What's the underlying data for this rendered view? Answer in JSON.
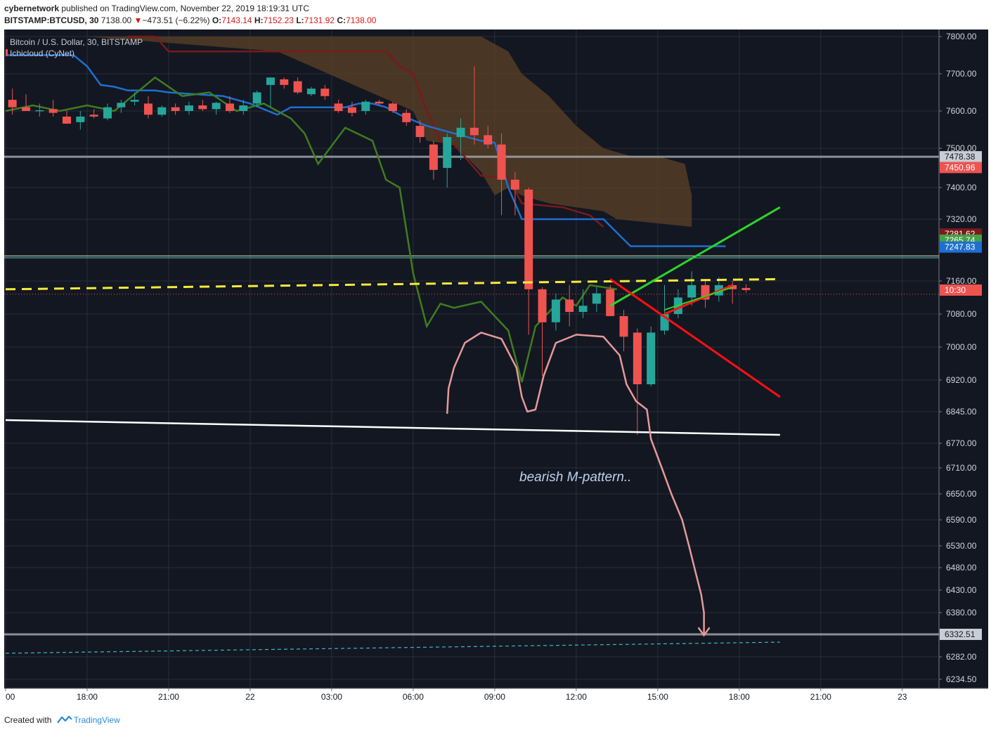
{
  "header": {
    "author": "cybernetwork",
    "published_text": "published on TradingView.com, November 22, 2019 18:19:31 UTC",
    "symbol": "BITSTAMP:BTCUSD, 30",
    "last_price": "7138.00",
    "change_arrow": "▼",
    "change": "−473.51 (−6.22%)",
    "o_label": "O:",
    "o_value": "7143.14",
    "h_label": "H:",
    "h_value": "7152.23",
    "l_label": "L:",
    "l_value": "7131.92",
    "c_label": "C:",
    "c_value": "7138.00"
  },
  "legend": {
    "title": "Bitcoin / U.S. Dollar, 30, BITSTAMP",
    "indicator": "Ichicloud (CyNet)"
  },
  "annotation": "bearish M-pattern..",
  "footer": {
    "created_with": "Created with",
    "brand": "TradingView"
  },
  "colors": {
    "background": "#131722",
    "grid": "#2a2e39",
    "up_candle": "#26a69a",
    "down_candle": "#ef5350",
    "kijun": "#1e6fd0",
    "tenkan": "#3e7d1f",
    "senkou_b": "#7a1a1a",
    "cloud": "#5e4325",
    "yellow_line": "#f5eb3a",
    "support_line": "#ffffff",
    "green_line": "#2bd52b",
    "red_line": "#ff1010",
    "path_line": "#e59a9a",
    "target_line": "#3ab8c8"
  },
  "chart_data": {
    "type": "candlestick",
    "interval_minutes": 30,
    "y_ticks": [
      7800,
      7700,
      7600,
      7500,
      7400,
      7320,
      7160,
      7080,
      7000,
      6920,
      6845,
      6770,
      6710,
      6650,
      6590,
      6530,
      6480,
      6430,
      6380,
      6282,
      6234.5
    ],
    "y_tick_labels": [
      "7800.00",
      "7700.00",
      "7600.00",
      "7500.00",
      "7400.00",
      "7320.00",
      "7160.00",
      "7080.00",
      "7000.00",
      "6920.00",
      "6845.00",
      "6770.00",
      "6710.00",
      "6650.00",
      "6590.00",
      "6530.00",
      "6480.00",
      "6430.00",
      "6380.00",
      "6282.00",
      "6234.50"
    ],
    "x_ticks": [
      {
        "label": "00",
        "index": 0
      },
      {
        "label": "18:00",
        "index": 6
      },
      {
        "label": "21:00",
        "index": 12
      },
      {
        "label": "22",
        "index": 18
      },
      {
        "label": "03:00",
        "index": 24
      },
      {
        "label": "06:00",
        "index": 30
      },
      {
        "label": "09:00",
        "index": 36
      },
      {
        "label": "12:00",
        "index": 42
      },
      {
        "label": "15:00",
        "index": 48
      },
      {
        "label": "18:00",
        "index": 54
      },
      {
        "label": "21:00",
        "index": 60
      },
      {
        "label": "23",
        "index": 66
      }
    ],
    "candles": [
      {
        "i": 0.5,
        "o": 7630,
        "h": 7660,
        "l": 7590,
        "c": 7610
      },
      {
        "i": 1.5,
        "o": 7610,
        "h": 7645,
        "l": 7600,
        "c": 7600
      },
      {
        "i": 2.5,
        "o": 7600,
        "h": 7620,
        "l": 7585,
        "c": 7602
      },
      {
        "i": 3.5,
        "o": 7605,
        "h": 7630,
        "l": 7585,
        "c": 7595
      },
      {
        "i": 4.5,
        "o": 7585,
        "h": 7600,
        "l": 7565,
        "c": 7566
      },
      {
        "i": 5.5,
        "o": 7570,
        "h": 7600,
        "l": 7550,
        "c": 7585
      },
      {
        "i": 6.5,
        "o": 7590,
        "h": 7605,
        "l": 7580,
        "c": 7585
      },
      {
        "i": 7.5,
        "o": 7580,
        "h": 7620,
        "l": 7575,
        "c": 7610
      },
      {
        "i": 8.5,
        "o": 7610,
        "h": 7630,
        "l": 7595,
        "c": 7622
      },
      {
        "i": 9.5,
        "o": 7625,
        "h": 7650,
        "l": 7615,
        "c": 7630
      },
      {
        "i": 10.5,
        "o": 7620,
        "h": 7640,
        "l": 7580,
        "c": 7590
      },
      {
        "i": 11.5,
        "o": 7590,
        "h": 7615,
        "l": 7585,
        "c": 7610
      },
      {
        "i": 12.5,
        "o": 7610,
        "h": 7620,
        "l": 7590,
        "c": 7600
      },
      {
        "i": 13.5,
        "o": 7600,
        "h": 7625,
        "l": 7590,
        "c": 7615
      },
      {
        "i": 14.5,
        "o": 7615,
        "h": 7630,
        "l": 7600,
        "c": 7605
      },
      {
        "i": 15.5,
        "o": 7605,
        "h": 7625,
        "l": 7590,
        "c": 7622
      },
      {
        "i": 16.5,
        "o": 7620,
        "h": 7640,
        "l": 7595,
        "c": 7600
      },
      {
        "i": 17.5,
        "o": 7600,
        "h": 7630,
        "l": 7590,
        "c": 7615
      },
      {
        "i": 18.5,
        "o": 7620,
        "h": 7655,
        "l": 7610,
        "c": 7650
      },
      {
        "i": 19.5,
        "o": 7670,
        "h": 7690,
        "l": 7610,
        "c": 7690
      },
      {
        "i": 20.5,
        "o": 7685,
        "h": 7690,
        "l": 7660,
        "c": 7670
      },
      {
        "i": 21.5,
        "o": 7680,
        "h": 7690,
        "l": 7645,
        "c": 7650
      },
      {
        "i": 22.5,
        "o": 7645,
        "h": 7665,
        "l": 7640,
        "c": 7660
      },
      {
        "i": 23.5,
        "o": 7660,
        "h": 7670,
        "l": 7630,
        "c": 7640
      },
      {
        "i": 24.5,
        "o": 7620,
        "h": 7630,
        "l": 7595,
        "c": 7600
      },
      {
        "i": 25.5,
        "o": 7610,
        "h": 7625,
        "l": 7585,
        "c": 7595
      },
      {
        "i": 26.5,
        "o": 7600,
        "h": 7630,
        "l": 7590,
        "c": 7625
      },
      {
        "i": 27.5,
        "o": 7625,
        "h": 7630,
        "l": 7615,
        "c": 7620
      },
      {
        "i": 28.5,
        "o": 7620,
        "h": 7625,
        "l": 7595,
        "c": 7600
      },
      {
        "i": 29.5,
        "o": 7595,
        "h": 7605,
        "l": 7560,
        "c": 7570
      },
      {
        "i": 30.5,
        "o": 7560,
        "h": 7575,
        "l": 7515,
        "c": 7530
      },
      {
        "i": 31.5,
        "o": 7510,
        "h": 7520,
        "l": 7420,
        "c": 7445
      },
      {
        "i": 32.5,
        "o": 7450,
        "h": 7540,
        "l": 7400,
        "c": 7530
      },
      {
        "i": 33.5,
        "o": 7530,
        "h": 7580,
        "l": 7470,
        "c": 7555
      },
      {
        "i": 34.5,
        "o": 7555,
        "h": 7720,
        "l": 7510,
        "c": 7535
      },
      {
        "i": 35.5,
        "o": 7535,
        "h": 7560,
        "l": 7500,
        "c": 7510
      },
      {
        "i": 36.5,
        "o": 7510,
        "h": 7540,
        "l": 7330,
        "c": 7420
      },
      {
        "i": 37.5,
        "o": 7420,
        "h": 7440,
        "l": 7330,
        "c": 7395
      },
      {
        "i": 38.5,
        "o": 7395,
        "h": 7400,
        "l": 7030,
        "c": 7140
      },
      {
        "i": 39.5,
        "o": 7140,
        "h": 7145,
        "l": 6930,
        "c": 7060
      },
      {
        "i": 40.5,
        "o": 7060,
        "h": 7130,
        "l": 7040,
        "c": 7115
      },
      {
        "i": 41.5,
        "o": 7115,
        "h": 7150,
        "l": 7050,
        "c": 7085
      },
      {
        "i": 42.5,
        "o": 7085,
        "h": 7140,
        "l": 7070,
        "c": 7100
      },
      {
        "i": 43.5,
        "o": 7105,
        "h": 7145,
        "l": 7085,
        "c": 7130
      },
      {
        "i": 44.5,
        "o": 7140,
        "h": 7150,
        "l": 7075,
        "c": 7075
      },
      {
        "i": 45.5,
        "o": 7075,
        "h": 7090,
        "l": 6990,
        "c": 7025
      },
      {
        "i": 46.5,
        "o": 7035,
        "h": 7045,
        "l": 6790,
        "c": 6910
      },
      {
        "i": 47.5,
        "o": 6910,
        "h": 7050,
        "l": 6905,
        "c": 7035
      },
      {
        "i": 48.5,
        "o": 7040,
        "h": 7150,
        "l": 7030,
        "c": 7080
      },
      {
        "i": 49.5,
        "o": 7080,
        "h": 7140,
        "l": 7070,
        "c": 7120
      },
      {
        "i": 50.5,
        "o": 7120,
        "h": 7185,
        "l": 7100,
        "c": 7150
      },
      {
        "i": 51.5,
        "o": 7150,
        "h": 7165,
        "l": 7095,
        "c": 7115
      },
      {
        "i": 52.5,
        "o": 7125,
        "h": 7170,
        "l": 7110,
        "c": 7150
      },
      {
        "i": 53.5,
        "o": 7150,
        "h": 7160,
        "l": 7105,
        "c": 7140
      },
      {
        "i": 54.5,
        "o": 7143.14,
        "h": 7152.23,
        "l": 7131.92,
        "c": 7138
      }
    ],
    "kijun": [
      [
        0,
        7750
      ],
      [
        5,
        7750
      ],
      [
        6,
        7720
      ],
      [
        7,
        7670
      ],
      [
        8,
        7665
      ],
      [
        9,
        7655
      ],
      [
        11,
        7655
      ],
      [
        12,
        7650
      ],
      [
        16,
        7640
      ],
      [
        18,
        7620
      ],
      [
        20,
        7590
      ],
      [
        21,
        7610
      ],
      [
        25,
        7610
      ],
      [
        26,
        7620
      ],
      [
        27,
        7620
      ],
      [
        28,
        7610
      ],
      [
        29,
        7590
      ],
      [
        30,
        7575
      ],
      [
        31,
        7560
      ],
      [
        33,
        7540
      ],
      [
        35,
        7520
      ],
      [
        36,
        7515
      ],
      [
        37,
        7400
      ],
      [
        38,
        7320
      ],
      [
        44,
        7320
      ],
      [
        46,
        7250
      ],
      [
        53,
        7250
      ]
    ],
    "tenkan": [
      [
        0,
        7600
      ],
      [
        2,
        7615
      ],
      [
        4,
        7600
      ],
      [
        6,
        7615
      ],
      [
        8,
        7600
      ],
      [
        11,
        7690
      ],
      [
        13,
        7640
      ],
      [
        15,
        7650
      ],
      [
        17,
        7600
      ],
      [
        19,
        7620
      ],
      [
        21,
        7580
      ],
      [
        22,
        7540
      ],
      [
        23,
        7460
      ],
      [
        25,
        7555
      ],
      [
        27,
        7520
      ],
      [
        28,
        7420
      ],
      [
        29,
        7400
      ],
      [
        30,
        7180
      ],
      [
        31,
        7050
      ],
      [
        32,
        7105
      ],
      [
        33,
        7095
      ],
      [
        35,
        7110
      ],
      [
        37,
        7040
      ],
      [
        38,
        6915
      ],
      [
        39,
        7050
      ],
      [
        41,
        7120
      ],
      [
        42,
        7100
      ],
      [
        43,
        7150
      ],
      [
        45,
        7140
      ]
    ],
    "senkou_b": [
      [
        9,
        7800
      ],
      [
        11,
        7800
      ],
      [
        12,
        7760
      ],
      [
        28,
        7760
      ],
      [
        29,
        7720
      ],
      [
        30,
        7700
      ],
      [
        31,
        7600
      ],
      [
        32,
        7520
      ],
      [
        33,
        7510
      ],
      [
        35,
        7430
      ],
      [
        37,
        7425
      ],
      [
        38,
        7360
      ],
      [
        41,
        7350
      ],
      [
        42,
        7340
      ],
      [
        43,
        7330
      ],
      [
        44,
        7300
      ]
    ],
    "cloud": {
      "upper": [
        [
          6,
          7800
        ],
        [
          35,
          7800
        ],
        [
          37,
          7760
        ],
        [
          38,
          7700
        ],
        [
          40,
          7640
        ],
        [
          42,
          7560
        ],
        [
          44,
          7500
        ],
        [
          46,
          7480
        ],
        [
          48,
          7480
        ],
        [
          50,
          7460
        ],
        [
          50.5,
          7380
        ]
      ],
      "lower": [
        [
          50.5,
          7300
        ],
        [
          45,
          7320
        ],
        [
          44,
          7340
        ],
        [
          40,
          7360
        ],
        [
          38,
          7380
        ],
        [
          37,
          7400
        ],
        [
          36,
          7380
        ],
        [
          35,
          7440
        ],
        [
          33,
          7510
        ],
        [
          31,
          7520
        ],
        [
          30,
          7600
        ],
        [
          20,
          7760
        ],
        [
          6,
          7800
        ]
      ]
    },
    "yellow_line": [
      [
        0,
        7140
      ],
      [
        57,
        7165
      ]
    ],
    "support_line": [
      [
        0,
        6825
      ],
      [
        57,
        6790
      ]
    ],
    "green_line": [
      [
        44.5,
        7100
      ],
      [
        57,
        7350
      ]
    ],
    "red_line": [
      [
        44.5,
        7165
      ],
      [
        57,
        6880
      ]
    ],
    "target_line": [
      [
        0,
        6290
      ],
      [
        57,
        6315
      ]
    ],
    "red_dotted_price": 7128,
    "h_lines": [
      7478.38,
      7220,
      7225
    ],
    "path_line": [
      [
        32.5,
        6840
      ],
      [
        32.6,
        6900
      ],
      [
        33,
        6950
      ],
      [
        33.8,
        7010
      ],
      [
        35,
        7035
      ],
      [
        36.5,
        7020
      ],
      [
        37.6,
        6950
      ],
      [
        38,
        6880
      ],
      [
        38.4,
        6845
      ],
      [
        39,
        6850
      ],
      [
        39.6,
        6930
      ],
      [
        40.5,
        7010
      ],
      [
        42,
        7030
      ],
      [
        44,
        7025
      ],
      [
        45.2,
        6980
      ],
      [
        45.7,
        6910
      ],
      [
        46.4,
        6870
      ],
      [
        47.2,
        6850
      ],
      [
        47.5,
        6780
      ],
      [
        48.3,
        6710
      ],
      [
        49,
        6650
      ],
      [
        49.8,
        6590
      ],
      [
        50.3,
        6530
      ],
      [
        50.7,
        6480
      ],
      [
        51.2,
        6420
      ],
      [
        51.4,
        6380
      ],
      [
        51.4,
        6332
      ]
    ],
    "price_labels": [
      {
        "price": 7478.38,
        "text": "7478.38",
        "bg": "#c8cdd6",
        "fg": "#131722"
      },
      {
        "price": 7450.96,
        "text": "7450.96",
        "bg": "#ef5350",
        "fg": "#ffffff"
      },
      {
        "price": 7281.62,
        "text": "7281.62",
        "bg": "#7a1a1a",
        "fg": "#ffffff"
      },
      {
        "price": 7265.74,
        "text": "7265.74",
        "bg": "#43a047",
        "fg": "#ffffff"
      },
      {
        "price": 7247.83,
        "text": "7247.83",
        "bg": "#1e6fd0",
        "fg": "#ffffff"
      },
      {
        "price": 7138.0,
        "text": "10:30",
        "bg": "#ef5350",
        "fg": "#ffffff"
      },
      {
        "price": 6332.51,
        "text": "6332.51",
        "bg": "#c8cdd6",
        "fg": "#131722"
      }
    ]
  }
}
